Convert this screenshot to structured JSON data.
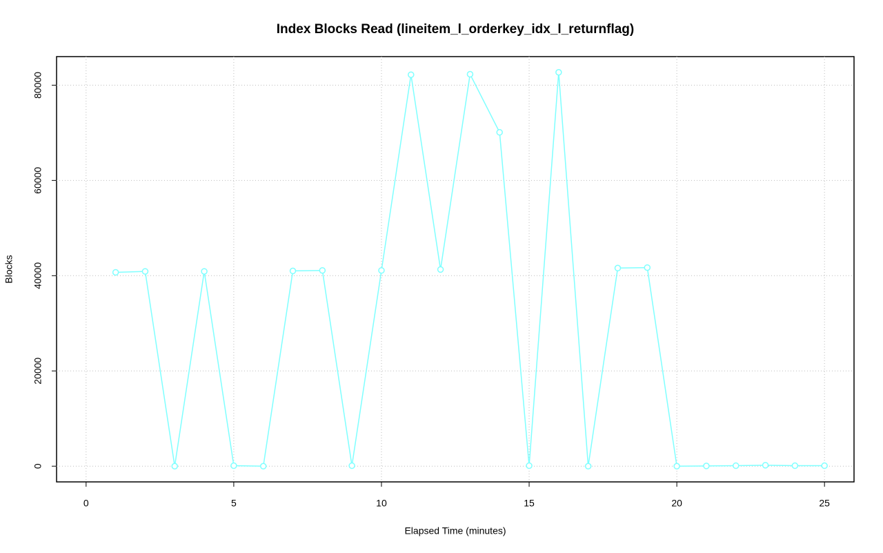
{
  "chart_data": {
    "type": "line",
    "title": "Index Blocks Read (lineitem_l_orderkey_idx_l_returnflag)",
    "x_label": "Elapsed Time (minutes)",
    "y_label": "Blocks",
    "x": [
      1,
      2,
      3,
      4,
      5,
      6,
      7,
      8,
      9,
      10,
      11,
      12,
      13,
      14,
      15,
      16,
      17,
      18,
      19,
      20,
      21,
      22,
      23,
      24,
      25
    ],
    "series": [
      {
        "name": "Blocks",
        "color": "#7fffff",
        "values": [
          40700,
          40900,
          0,
          40900,
          100,
          0,
          41000,
          41100,
          100,
          41100,
          82200,
          41300,
          82300,
          70100,
          100,
          82700,
          0,
          41600,
          41700,
          0,
          50,
          100,
          200,
          100,
          100
        ]
      }
    ],
    "xlim": [
      -1,
      26
    ],
    "xticks": [
      0,
      5,
      10,
      15,
      20,
      25
    ],
    "ylim": [
      -3300,
      86000
    ],
    "yticks": [
      0,
      20000,
      40000,
      60000,
      80000
    ],
    "grid": true
  }
}
